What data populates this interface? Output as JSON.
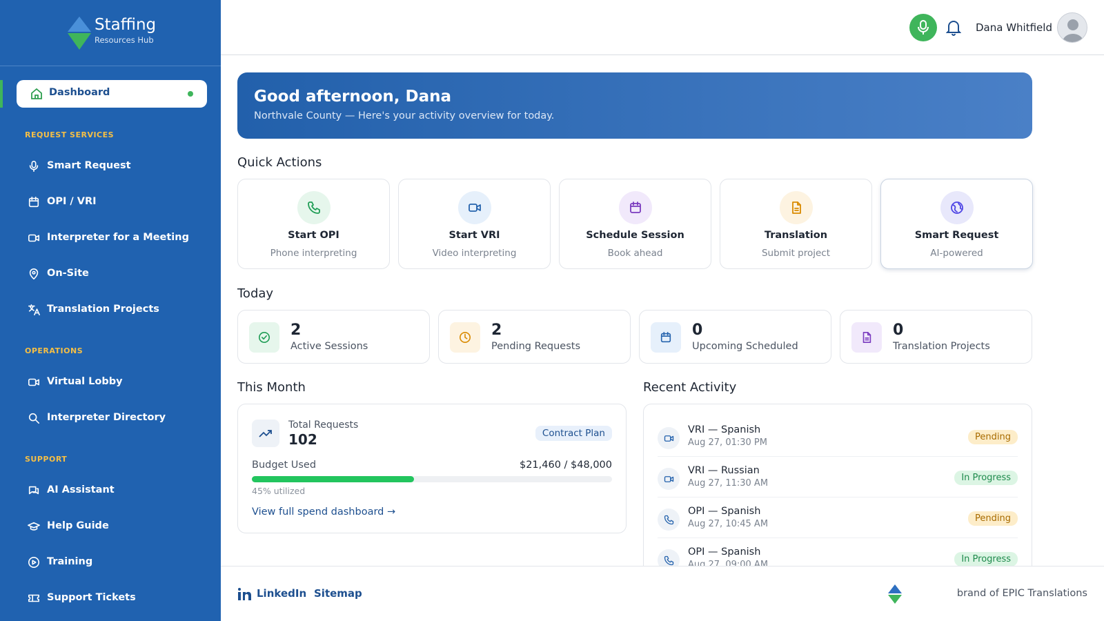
{
  "brand": {
    "name": "Staffing",
    "tagline": "Resources Hub"
  },
  "nav": {
    "active": "Dashboard",
    "sections": [
      {
        "title": "REQUEST SERVICES",
        "items": [
          "Smart Request",
          "OPI / VRI",
          "Interpreter for a Meeting",
          "On-Site",
          "Translation Projects"
        ]
      },
      {
        "title": "OPERATIONS",
        "items": [
          "Virtual Lobby",
          "Interpreter Directory"
        ]
      },
      {
        "title": "SUPPORT",
        "items": [
          "AI Assistant",
          "Help Guide",
          "Training",
          "Support Tickets"
        ]
      }
    ]
  },
  "header": {
    "user": "Dana Whitfield"
  },
  "hero": {
    "title": "Good afternoon, Dana",
    "subtitle": "Northvale County — Here's your activity overview for today."
  },
  "quick_actions": {
    "title": "Quick Actions",
    "items": [
      {
        "title": "Start OPI",
        "subtitle": "Phone interpreting"
      },
      {
        "title": "Start VRI",
        "subtitle": "Video interpreting"
      },
      {
        "title": "Schedule Session",
        "subtitle": "Book ahead"
      },
      {
        "title": "Translation",
        "subtitle": "Submit project"
      },
      {
        "title": "Smart Request",
        "subtitle": "AI-powered"
      }
    ]
  },
  "today": {
    "title": "Today",
    "stats": [
      {
        "value": 2,
        "label": "Active Sessions"
      },
      {
        "value": 2,
        "label": "Pending Requests"
      },
      {
        "value": 0,
        "label": "Upcoming Scheduled"
      },
      {
        "value": 0,
        "label": "Translation Projects"
      }
    ]
  },
  "month": {
    "title": "This Month",
    "total_label": "Total Requests",
    "total": 102,
    "plan": "Contract Plan",
    "budget_label": "Budget Used",
    "budget": "$21,460 / $48,000",
    "utilized": 45,
    "utilized_label": "45% utilized",
    "link": "View full spend dashboard →"
  },
  "activity": {
    "title": "Recent Activity",
    "items": [
      {
        "title": "VRI — Spanish",
        "time": "Aug 27, 01:30 PM",
        "status": "Pending"
      },
      {
        "title": "VRI — Russian",
        "time": "Aug 27, 11:30 AM",
        "status": "In Progress"
      },
      {
        "title": "OPI — Spanish",
        "time": "Aug 27, 10:45 AM",
        "status": "Pending"
      },
      {
        "title": "OPI — Spanish",
        "time": "Aug 27, 09:00 AM",
        "status": "In Progress"
      }
    ]
  },
  "footer": {
    "links": [
      "LinkedIn",
      "Sitemap"
    ],
    "brand": "brand of EPIC Translations"
  }
}
